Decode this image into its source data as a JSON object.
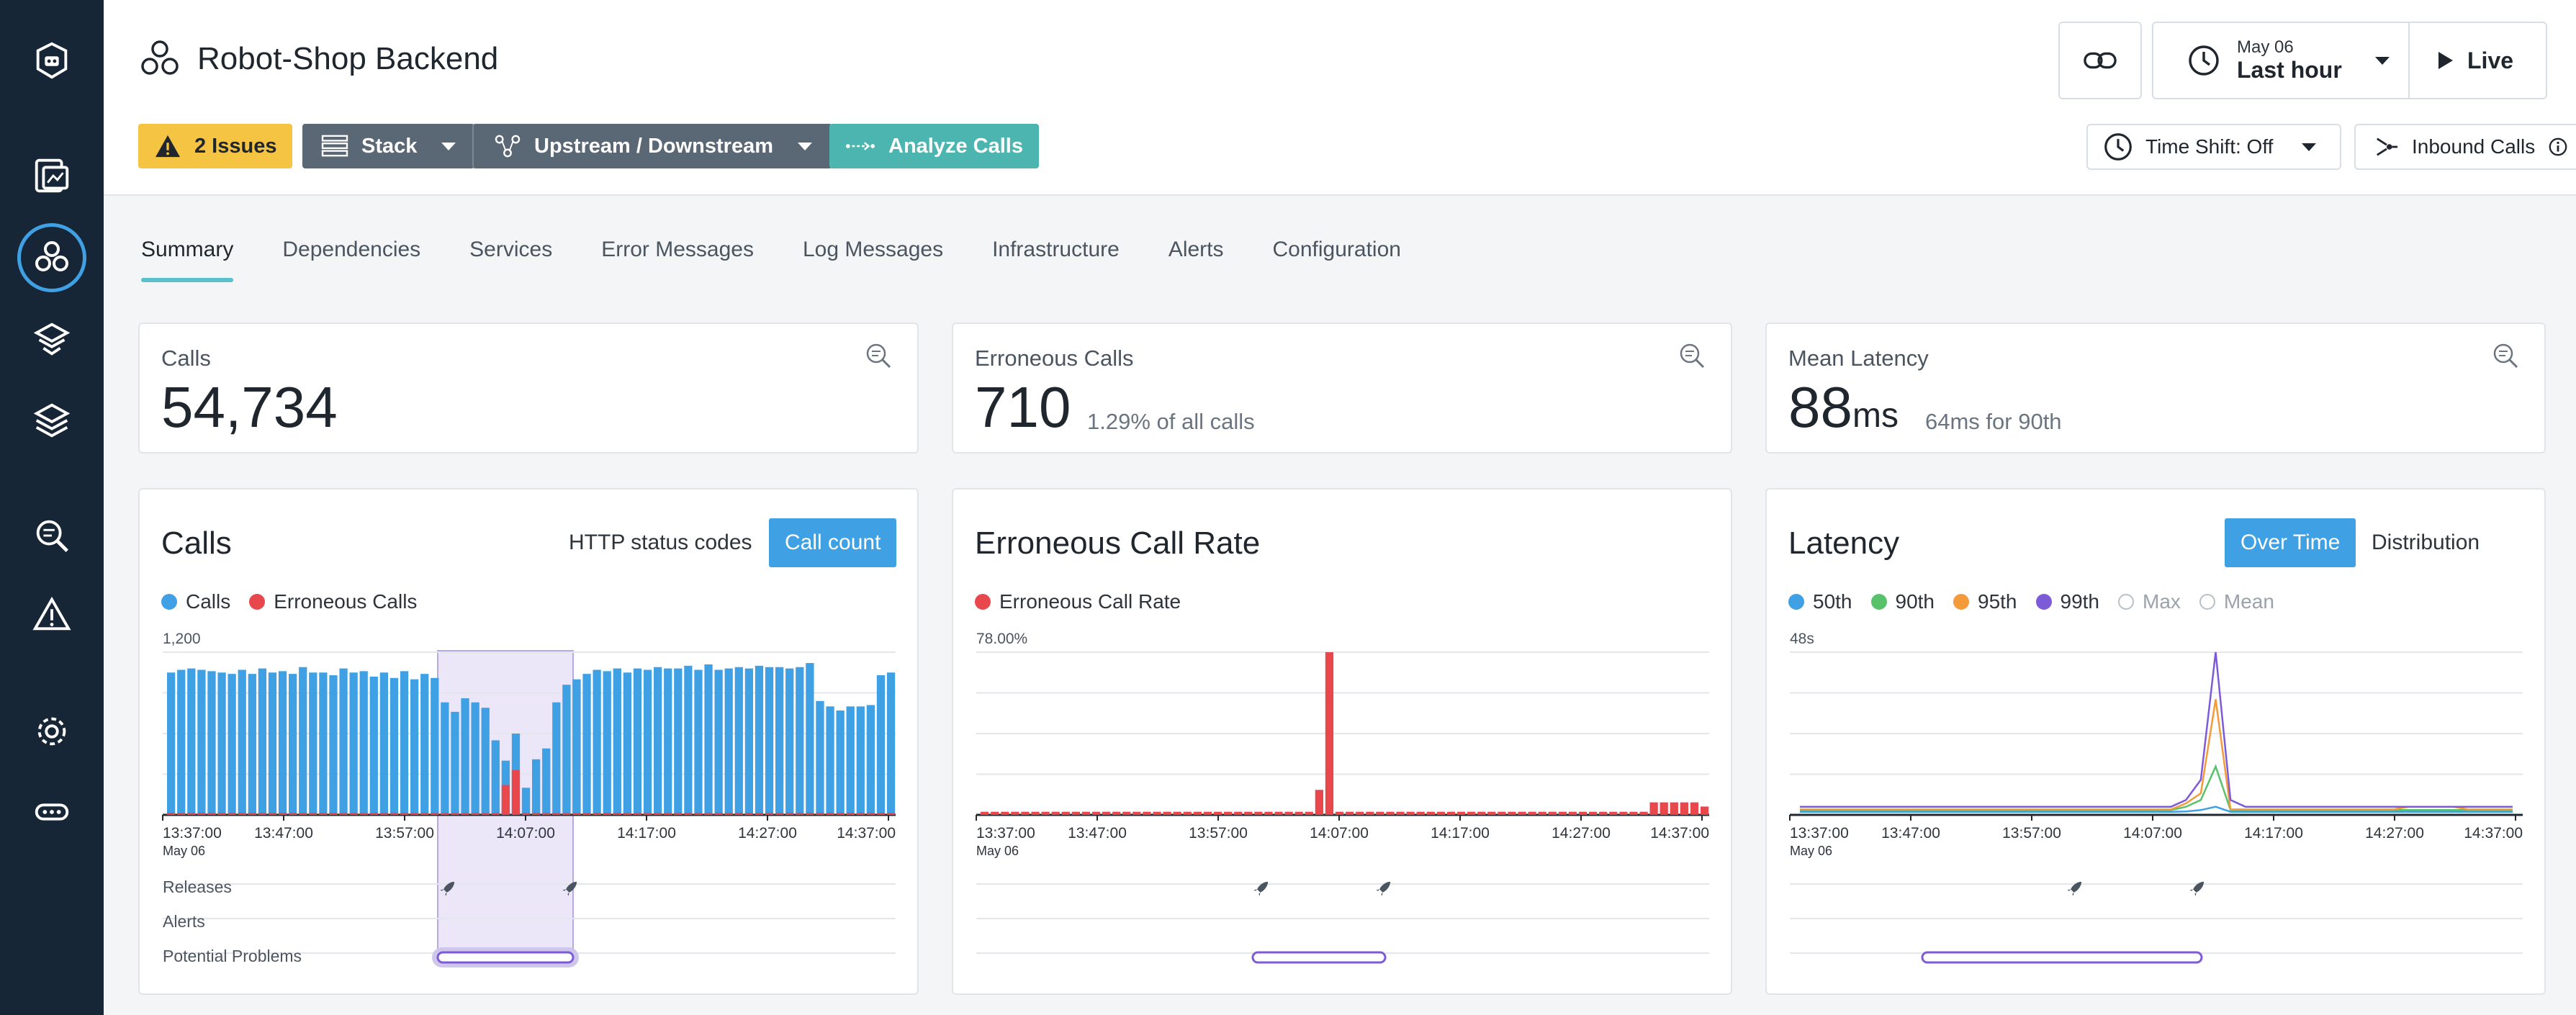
{
  "header": {
    "title": "Robot-Shop Backend",
    "issues_label": "2 Issues",
    "stack_label": "Stack",
    "updown_label": "Upstream / Downstream",
    "analyze_label": "Analyze Calls",
    "date_label": "May 06",
    "range_label": "Last hour",
    "live_label": "Live",
    "time_shift_label": "Time Shift: Off",
    "inbound_label": "Inbound Calls"
  },
  "tabs": [
    "Summary",
    "Dependencies",
    "Services",
    "Error Messages",
    "Log Messages",
    "Infrastructure",
    "Alerts",
    "Configuration"
  ],
  "metrics": {
    "calls": {
      "label": "Calls",
      "value": "54,734"
    },
    "erroneous": {
      "label": "Erroneous Calls",
      "value": "710",
      "sub": "1.29% of all calls"
    },
    "latency": {
      "label": "Mean Latency",
      "value": "88",
      "unit": "ms",
      "sub": "64ms for 90th"
    }
  },
  "charts": {
    "calls": {
      "title": "Calls",
      "toggle_a": "HTTP status codes",
      "toggle_b": "Call count",
      "legend": [
        "Calls",
        "Erroneous Calls"
      ],
      "y_max_label": "1,200",
      "x_labels": [
        "13:37:00",
        "13:47:00",
        "13:57:00",
        "14:07:00",
        "14:17:00",
        "14:27:00",
        "14:37:00"
      ],
      "x_date": "May 06",
      "rows": [
        "Releases",
        "Alerts",
        "Potential Problems"
      ]
    },
    "error_rate": {
      "title": "Erroneous Call Rate",
      "legend": [
        "Erroneous Call Rate"
      ],
      "y_max_label": "78.00%",
      "x_labels": [
        "13:37:00",
        "13:47:00",
        "13:57:00",
        "14:07:00",
        "14:17:00",
        "14:27:00",
        "14:37:00"
      ],
      "x_date": "May 06"
    },
    "latency": {
      "title": "Latency",
      "toggle_a": "Over Time",
      "toggle_b": "Distribution",
      "legend": [
        "50th",
        "90th",
        "95th",
        "99th",
        "Max",
        "Mean"
      ],
      "y_max_label": "48s",
      "x_labels": [
        "13:37:00",
        "13:47:00",
        "13:57:00",
        "14:07:00",
        "14:17:00",
        "14:27:00",
        "14:37:00"
      ],
      "x_date": "May 06"
    }
  },
  "chart_data": [
    {
      "type": "bar",
      "title": "Calls",
      "ylim": [
        0,
        1200
      ],
      "series": [
        {
          "name": "Calls",
          "color": "#3fa0e4",
          "values": [
            1050,
            1070,
            1080,
            1070,
            1060,
            1050,
            1040,
            1070,
            1040,
            1080,
            1050,
            1060,
            1040,
            1090,
            1050,
            1050,
            1030,
            1080,
            1050,
            1060,
            1020,
            1050,
            1010,
            1060,
            1000,
            1040,
            1010,
            830,
            760,
            860,
            830,
            790,
            550,
            400,
            600,
            200,
            410,
            490,
            830,
            960,
            1000,
            1040,
            1070,
            1060,
            1080,
            1050,
            1080,
            1070,
            1090,
            1080,
            1080,
            1100,
            1070,
            1110,
            1070,
            1080,
            1090,
            1080,
            1100,
            1090,
            1090,
            1080,
            1090,
            1120,
            840,
            800,
            770,
            800,
            800,
            810,
            1030,
            1050
          ]
        },
        {
          "name": "Erroneous Calls",
          "color": "#e8474c",
          "values": [
            15,
            15,
            15,
            15,
            15,
            15,
            15,
            15,
            15,
            15,
            15,
            15,
            15,
            15,
            15,
            15,
            15,
            15,
            15,
            15,
            15,
            15,
            15,
            15,
            15,
            15,
            15,
            15,
            15,
            15,
            15,
            15,
            15,
            220,
            330,
            15,
            15,
            15,
            15,
            15,
            15,
            15,
            15,
            15,
            15,
            15,
            15,
            15,
            15,
            15,
            15,
            15,
            15,
            15,
            15,
            15,
            15,
            15,
            15,
            15,
            15,
            15,
            15,
            15,
            15,
            15,
            15,
            15,
            15,
            15,
            15,
            15
          ]
        }
      ]
    },
    {
      "type": "bar",
      "title": "Erroneous Call Rate",
      "ylim": [
        0,
        78
      ],
      "series": [
        {
          "name": "Erroneous Call Rate",
          "color": "#e8474c",
          "values": [
            1.5,
            1.5,
            1.5,
            1.5,
            1.5,
            1.5,
            1.5,
            1.5,
            1.5,
            1.5,
            1.5,
            1.5,
            1.5,
            1.5,
            1.5,
            1.5,
            1.5,
            1.5,
            1.5,
            1.5,
            1.5,
            1.5,
            1.5,
            1.5,
            1.5,
            1.5,
            1.5,
            1.5,
            1.5,
            1.5,
            1.5,
            1.5,
            1.5,
            12,
            78,
            1.5,
            1.5,
            1.5,
            1.5,
            1.5,
            1.5,
            1.5,
            1.5,
            1.5,
            1.5,
            1.5,
            1.5,
            1.5,
            1.5,
            1.5,
            1.5,
            1.5,
            1.5,
            1.5,
            1.5,
            1.5,
            1.5,
            1.5,
            1.5,
            1.5,
            1.5,
            1.5,
            1.5,
            1.5,
            1.5,
            1.5,
            6,
            6,
            6,
            6,
            6,
            4
          ]
        }
      ]
    },
    {
      "type": "line",
      "title": "Latency",
      "ylim": [
        0,
        48
      ],
      "series": [
        {
          "name": "50th",
          "color": "#3fa0e4",
          "values": [
            0.5,
            0.5,
            0.5,
            0.5,
            0.5,
            0.5,
            0.5,
            0.5,
            0.5,
            0.5,
            0.5,
            0.5,
            0.5,
            0.5,
            0.5,
            0.5,
            0.5,
            0.5,
            0.5,
            0.5,
            0.5,
            0.5,
            0.5,
            0.5,
            0.5,
            0.5,
            0.6,
            1,
            2,
            0.5,
            0.5,
            0.5,
            0.5,
            0.5,
            0.5,
            0.5,
            0.5,
            0.5,
            0.5,
            0.5,
            0.5,
            0.5,
            0.5,
            0.5,
            0.5,
            0.5,
            0.5,
            0.5,
            0.5
          ]
        },
        {
          "name": "90th",
          "color": "#58c26b",
          "values": [
            1,
            1,
            1,
            1,
            1,
            1,
            1,
            1,
            1,
            1,
            1,
            1,
            1,
            1,
            1,
            1,
            1,
            1,
            1,
            1,
            1,
            1,
            1,
            1,
            1,
            1,
            2,
            4,
            14,
            1,
            1,
            1,
            1,
            1,
            1,
            1,
            1,
            1,
            1,
            1,
            1,
            1,
            1,
            1,
            1,
            1,
            1,
            1,
            1
          ]
        },
        {
          "name": "95th",
          "color": "#f39a3a",
          "values": [
            1.2,
            1.2,
            1.2,
            1.2,
            1.2,
            1.2,
            1.2,
            1.2,
            1.2,
            1.2,
            1.2,
            1.2,
            1.2,
            1.2,
            1.2,
            1.2,
            1.2,
            1.2,
            1.2,
            1.2,
            1.2,
            1.2,
            1.2,
            1.2,
            1.2,
            1.2,
            3,
            6,
            34,
            1.2,
            1.2,
            1.2,
            1.2,
            1.2,
            1.2,
            1.2,
            1.2,
            1.2,
            1.2,
            1.2,
            1.2,
            2,
            2,
            2,
            2,
            1.2,
            1.2,
            1.2,
            1.2
          ]
        },
        {
          "name": "99th",
          "color": "#7d5bd8",
          "values": [
            2,
            2,
            2,
            2,
            2,
            2,
            2,
            2,
            2,
            2,
            2,
            2,
            2,
            2,
            2,
            2,
            2,
            2,
            2,
            2,
            2,
            2,
            2,
            2,
            2,
            2,
            4,
            10,
            48,
            4,
            2,
            2,
            2,
            2,
            2,
            2,
            2,
            2,
            2,
            2,
            2,
            2,
            2,
            2,
            2,
            2,
            2,
            2,
            2
          ]
        }
      ]
    }
  ]
}
